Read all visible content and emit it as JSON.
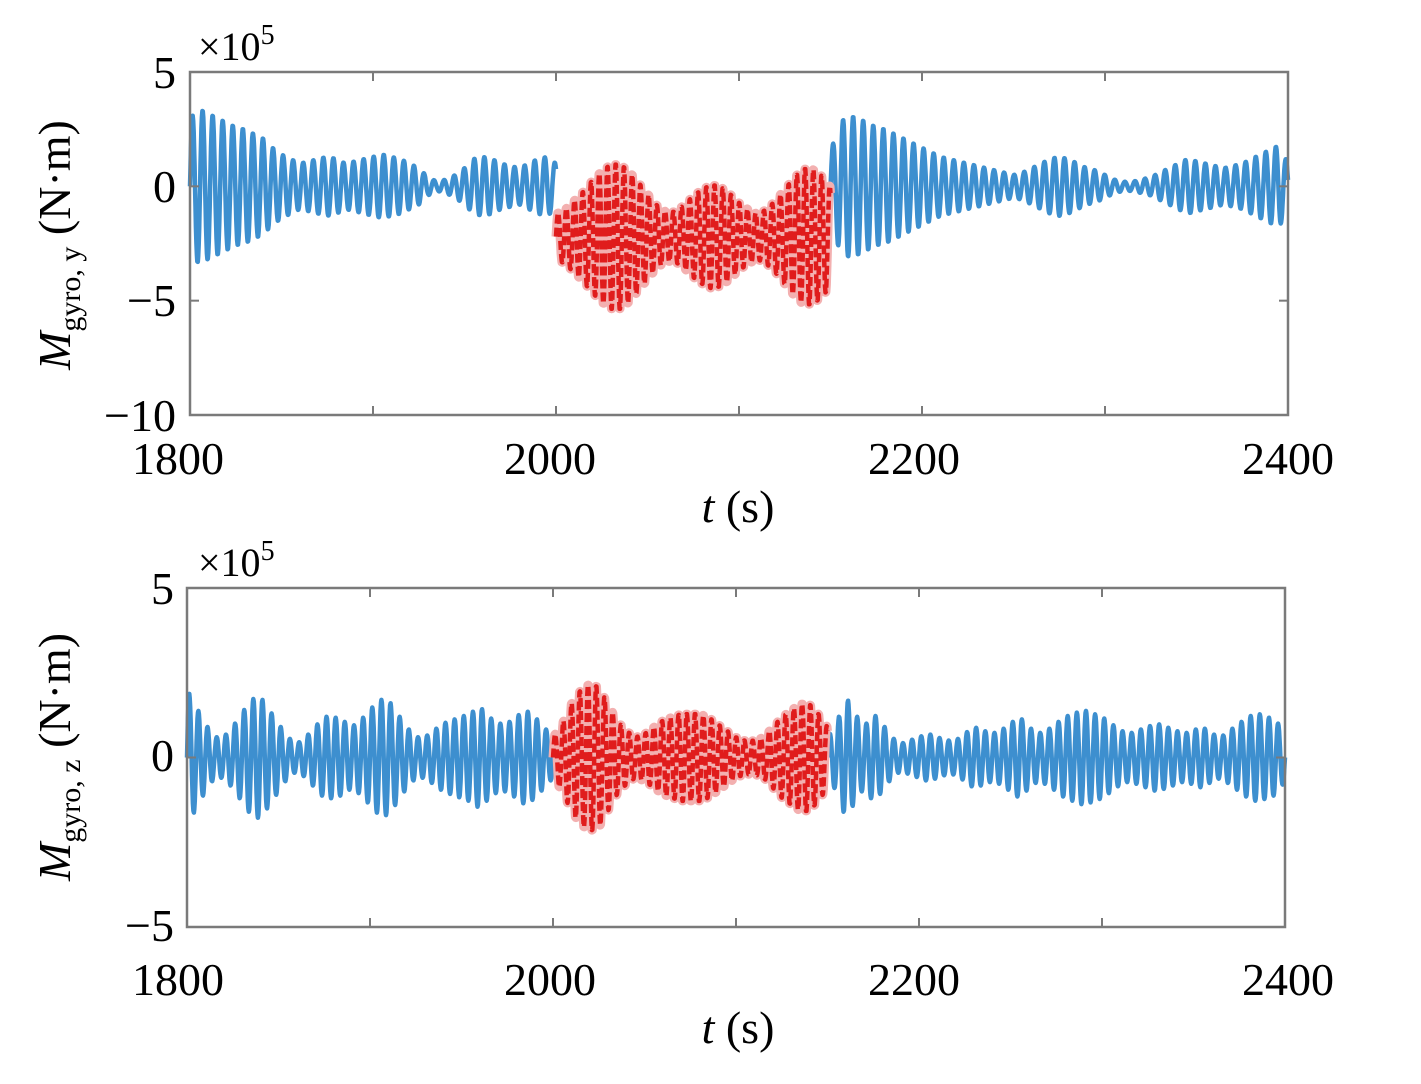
{
  "colors": {
    "normal": "#3d8fcf",
    "anomaly": "#e01c1c",
    "anomaly_glow": "#f3b0b0",
    "frame": "#7a7a7a"
  },
  "chart_data": [
    {
      "type": "line",
      "exponent_label": "×10",
      "exponent_power": "5",
      "xlim": [
        1800,
        2400
      ],
      "ylim": [
        -10,
        5
      ],
      "x_ticks": [
        1800,
        2000,
        2200,
        2400
      ],
      "x_tick_labels": [
        "1800",
        "2000",
        "2200",
        "2400"
      ],
      "y_ticks": [
        -10,
        -5,
        0,
        5
      ],
      "y_tick_labels": [
        "−10",
        "−5",
        "0",
        "5"
      ],
      "xlabel": {
        "var": "t",
        "unit": "(s)"
      },
      "ylabel": {
        "var": "M",
        "sub": "gyro, y",
        "unit": "(N·m)"
      },
      "series": [
        {
          "style": "solid",
          "segments": [
            [
              1800,
              2000
            ],
            [
              2150,
              2400
            ]
          ],
          "x": [
            1800,
            1805,
            1810,
            1815,
            1820,
            1825,
            1830,
            1835,
            1840,
            1845,
            1850,
            1855,
            1860,
            1865,
            1870,
            1875,
            1880,
            1885,
            1890,
            1895,
            1900,
            1905,
            1910,
            1915,
            1920,
            1925,
            1930,
            1935,
            1940,
            1945,
            1950,
            1955,
            1960,
            1965,
            1970,
            1975,
            1980,
            1985,
            1990,
            1995,
            2000,
            2150,
            2155,
            2160,
            2165,
            2170,
            2175,
            2180,
            2185,
            2190,
            2195,
            2200,
            2205,
            2210,
            2215,
            2220,
            2225,
            2230,
            2235,
            2240,
            2245,
            2250,
            2255,
            2260,
            2265,
            2270,
            2275,
            2280,
            2285,
            2290,
            2295,
            2300,
            2305,
            2310,
            2315,
            2320,
            2325,
            2330,
            2335,
            2340,
            2345,
            2350,
            2355,
            2360,
            2365,
            2370,
            2375,
            2380,
            2385,
            2390,
            2395,
            2400
          ],
          "envelope": [
            3.0,
            3.4,
            3.2,
            3.0,
            2.8,
            2.6,
            2.5,
            2.3,
            2.1,
            1.7,
            1.4,
            1.2,
            1.0,
            1.1,
            1.2,
            1.3,
            1.2,
            1.0,
            1.1,
            1.2,
            1.3,
            1.4,
            1.3,
            1.2,
            1.0,
            0.8,
            0.4,
            0.2,
            0.3,
            0.5,
            0.8,
            1.2,
            1.3,
            1.2,
            1.0,
            0.9,
            0.8,
            1.0,
            1.2,
            1.3,
            1.0,
            1.5,
            2.8,
            3.1,
            3.0,
            2.8,
            2.6,
            2.5,
            2.3,
            2.1,
            1.9,
            1.7,
            1.5,
            1.3,
            1.2,
            1.1,
            1.0,
            0.9,
            0.8,
            0.7,
            0.6,
            0.5,
            0.6,
            0.8,
            1.0,
            1.2,
            1.3,
            1.2,
            1.0,
            0.8,
            0.7,
            0.5,
            0.3,
            0.2,
            0.2,
            0.3,
            0.4,
            0.6,
            0.8,
            1.0,
            1.2,
            1.1,
            1.0,
            0.9,
            0.8,
            0.9,
            1.0,
            1.2,
            1.4,
            1.6,
            1.8,
            1.0
          ],
          "period_s": 5.5,
          "offset": 0
        },
        {
          "style": "dashed",
          "segments": [
            [
              2000,
              2150
            ]
          ],
          "x": [
            2000,
            2005,
            2010,
            2015,
            2020,
            2025,
            2030,
            2035,
            2040,
            2045,
            2050,
            2055,
            2060,
            2065,
            2070,
            2075,
            2080,
            2085,
            2090,
            2095,
            2100,
            2105,
            2110,
            2115,
            2120,
            2125,
            2130,
            2135,
            2140,
            2145,
            2150
          ],
          "envelope": [
            1.0,
            1.2,
            1.6,
            2.0,
            2.5,
            2.9,
            3.2,
            3.2,
            2.9,
            2.4,
            1.9,
            1.4,
            1.1,
            1.1,
            1.4,
            1.8,
            2.1,
            2.3,
            2.2,
            1.9,
            1.5,
            1.2,
            1.0,
            1.2,
            1.6,
            2.1,
            2.6,
            3.0,
            3.0,
            2.7,
            2.2
          ],
          "period_s": 4.5,
          "offset": -2.2
        }
      ]
    },
    {
      "type": "line",
      "exponent_label": "×10",
      "exponent_power": "5",
      "xlim": [
        1800,
        2400
      ],
      "ylim": [
        -5,
        5
      ],
      "x_ticks": [
        1800,
        2000,
        2200,
        2400
      ],
      "x_tick_labels": [
        "1800",
        "2000",
        "2200",
        "2400"
      ],
      "y_ticks": [
        -5,
        0,
        5
      ],
      "y_tick_labels": [
        "−5",
        "0",
        "5"
      ],
      "xlabel": {
        "var": "t",
        "unit": "(s)"
      },
      "ylabel": {
        "var": "M",
        "sub": "gyro, z",
        "unit": "(N·m)"
      },
      "series": [
        {
          "style": "solid",
          "segments": [
            [
              1800,
              2000
            ],
            [
              2150,
              2400
            ]
          ],
          "x": [
            1800,
            1805,
            1810,
            1815,
            1820,
            1825,
            1830,
            1835,
            1840,
            1845,
            1850,
            1855,
            1860,
            1865,
            1870,
            1875,
            1880,
            1885,
            1890,
            1895,
            1900,
            1905,
            1910,
            1915,
            1920,
            1925,
            1930,
            1935,
            1940,
            1945,
            1950,
            1955,
            1960,
            1965,
            1970,
            1975,
            1980,
            1985,
            1990,
            1995,
            2000,
            2150,
            2155,
            2160,
            2165,
            2170,
            2175,
            2180,
            2185,
            2190,
            2195,
            2200,
            2205,
            2210,
            2215,
            2220,
            2225,
            2230,
            2235,
            2240,
            2245,
            2250,
            2255,
            2260,
            2265,
            2270,
            2275,
            2280,
            2285,
            2290,
            2295,
            2300,
            2305,
            2310,
            2315,
            2320,
            2325,
            2330,
            2335,
            2340,
            2345,
            2350,
            2355,
            2360,
            2365,
            2370,
            2375,
            2380,
            2385,
            2390,
            2395,
            2400
          ],
          "envelope": [
            2.0,
            1.5,
            1.0,
            0.6,
            0.6,
            0.9,
            1.3,
            1.7,
            1.8,
            1.4,
            1.0,
            0.6,
            0.4,
            0.6,
            0.9,
            1.2,
            1.2,
            1.1,
            0.9,
            1.1,
            1.4,
            1.7,
            1.7,
            1.3,
            0.9,
            0.6,
            0.6,
            0.8,
            1.0,
            1.1,
            1.2,
            1.3,
            1.5,
            1.2,
            1.0,
            1.0,
            1.2,
            1.4,
            1.2,
            0.9,
            0.6,
            0.6,
            1.0,
            1.8,
            1.3,
            0.9,
            1.3,
            1.0,
            0.6,
            0.4,
            0.5,
            0.6,
            0.7,
            0.6,
            0.5,
            0.5,
            0.7,
            0.9,
            0.8,
            0.7,
            0.8,
            1.0,
            1.2,
            0.9,
            0.7,
            0.8,
            1.0,
            1.2,
            1.3,
            1.4,
            1.3,
            1.2,
            1.0,
            0.8,
            0.7,
            0.8,
            0.9,
            1.0,
            0.9,
            0.8,
            0.7,
            0.8,
            0.9,
            0.7,
            0.6,
            0.8,
            1.0,
            1.2,
            1.3,
            1.2,
            1.1,
            0.7
          ],
          "period_s": 5.0,
          "offset": 0
        },
        {
          "style": "dashed",
          "segments": [
            [
              2000,
              2150
            ]
          ],
          "x": [
            2000,
            2005,
            2010,
            2015,
            2020,
            2025,
            2030,
            2035,
            2040,
            2045,
            2050,
            2055,
            2060,
            2065,
            2070,
            2075,
            2080,
            2085,
            2090,
            2095,
            2100,
            2105,
            2110,
            2115,
            2120,
            2125,
            2130,
            2135,
            2140,
            2145,
            2150
          ],
          "envelope": [
            0.6,
            1.0,
            1.6,
            2.0,
            2.2,
            2.1,
            1.6,
            1.1,
            0.8,
            0.6,
            0.7,
            0.9,
            1.1,
            1.2,
            1.3,
            1.3,
            1.3,
            1.2,
            1.0,
            0.8,
            0.6,
            0.5,
            0.5,
            0.6,
            0.9,
            1.2,
            1.4,
            1.6,
            1.6,
            1.3,
            0.9
          ],
          "period_s": 4.5,
          "offset": 0
        }
      ]
    }
  ]
}
